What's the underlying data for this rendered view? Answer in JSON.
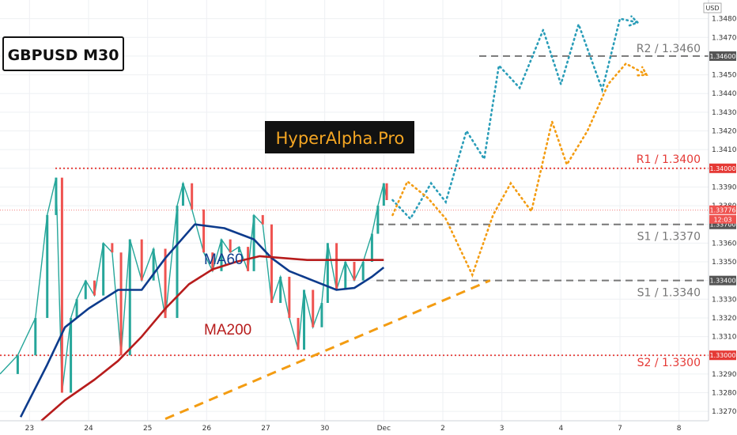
{
  "chart_data": {
    "type": "line",
    "title": "GBPUSD M30",
    "watermark": "HyperAlpha.Pro",
    "currency_label": "USD",
    "y_range": [
      1.3265,
      1.349
    ],
    "y_ticks": [
      "1.34800",
      "1.34700",
      "1.34600",
      "1.34500",
      "1.34400",
      "1.34300",
      "1.34200",
      "1.34100",
      "1.34000",
      "1.33900",
      "1.33800",
      "1.33700",
      "1.33600",
      "1.33500",
      "1.33400",
      "1.33300",
      "1.33200",
      "1.33100",
      "1.33000",
      "1.32900",
      "1.32800",
      "1.32700"
    ],
    "y_tick_values": [
      1.348,
      1.347,
      1.346,
      1.345,
      1.344,
      1.343,
      1.342,
      1.341,
      1.34,
      1.339,
      1.338,
      1.337,
      1.336,
      1.335,
      1.334,
      1.333,
      1.332,
      1.331,
      1.33,
      1.329,
      1.328,
      1.327
    ],
    "x_ticks": [
      "23",
      "24",
      "25",
      "26",
      "27",
      "30",
      "Dec",
      "2",
      "3",
      "4",
      "7",
      "8"
    ],
    "x_tick_positions": [
      0.5,
      1.5,
      2.5,
      3.5,
      4.5,
      5.5,
      6.5,
      7.5,
      8.5,
      9.5,
      10.5,
      11.5
    ],
    "x_range": [
      0,
      12
    ],
    "current_price": "1.33776",
    "countdown": "12:03",
    "grid": true,
    "levels": [
      {
        "label": "R2 / 1.3460",
        "value": 1.346,
        "axis_label": "1.34600",
        "color": "#777777",
        "style": "dashed"
      },
      {
        "label": "R1 / 1.3400",
        "value": 1.34,
        "axis_label": "1.34000",
        "color": "#e53935",
        "style": "dotted"
      },
      {
        "label": "S1 / 1.3370",
        "value": 1.337,
        "axis_label": "1.33700",
        "color": "#777777",
        "style": "dashed"
      },
      {
        "label": "S1 / 1.3340",
        "value": 1.334,
        "axis_label": "1.33400",
        "color": "#777777",
        "style": "dashed"
      },
      {
        "label": "S2 / 1.3300",
        "value": 1.33,
        "axis_label": "1.33000",
        "color": "#e53935",
        "style": "dotted"
      }
    ],
    "moving_averages": [
      {
        "name": "MA60",
        "color": "#0d3b8c",
        "x": [
          0.35,
          0.8,
          1.1,
          1.5,
          2.0,
          2.4,
          2.8,
          3.3,
          3.8,
          4.3,
          4.6,
          4.9,
          5.3,
          5.7,
          6.0,
          6.3,
          6.5
        ],
        "y": [
          1.3267,
          1.3295,
          1.3315,
          1.3325,
          1.3335,
          1.3335,
          1.3352,
          1.337,
          1.3368,
          1.3362,
          1.3352,
          1.3345,
          1.334,
          1.3335,
          1.3336,
          1.3342,
          1.3347
        ]
      },
      {
        "name": "MA200",
        "color": "#b71c1c",
        "x": [
          0.7,
          1.1,
          1.6,
          2.0,
          2.4,
          2.8,
          3.2,
          3.6,
          4.0,
          4.4,
          4.8,
          5.2,
          5.6,
          6.0,
          6.3,
          6.5
        ],
        "y": [
          1.3265,
          1.3276,
          1.3287,
          1.3297,
          1.331,
          1.3325,
          1.3338,
          1.3346,
          1.335,
          1.3353,
          1.3352,
          1.3351,
          1.3351,
          1.3351,
          1.3351,
          1.3351
        ]
      }
    ],
    "trendline": {
      "name": "",
      "color": "#f39c12",
      "x": [
        2.8,
        8.3
      ],
      "y": [
        1.3266,
        1.334
      ]
    },
    "price_series": {
      "name": "",
      "x": [
        0.0,
        0.3,
        0.6,
        0.8,
        0.95,
        1.05,
        1.2,
        1.3,
        1.45,
        1.6,
        1.75,
        1.9,
        2.05,
        2.2,
        2.4,
        2.6,
        2.8,
        3.0,
        3.1,
        3.25,
        3.45,
        3.6,
        3.75,
        3.9,
        4.05,
        4.2,
        4.3,
        4.45,
        4.6,
        4.75,
        4.9,
        5.05,
        5.15,
        5.3,
        5.45,
        5.55,
        5.7,
        5.85,
        6.0,
        6.15,
        6.3,
        6.4,
        6.5,
        6.55
      ],
      "y": [
        1.329,
        1.33,
        1.332,
        1.3375,
        1.3395,
        1.328,
        1.332,
        1.333,
        1.334,
        1.3332,
        1.336,
        1.3355,
        1.33,
        1.3362,
        1.334,
        1.3357,
        1.332,
        1.338,
        1.3392,
        1.3378,
        1.3355,
        1.3345,
        1.3362,
        1.3355,
        1.3358,
        1.3345,
        1.3375,
        1.337,
        1.3328,
        1.3342,
        1.332,
        1.3303,
        1.3335,
        1.3315,
        1.3328,
        1.336,
        1.3335,
        1.335,
        1.334,
        1.335,
        1.3365,
        1.338,
        1.3392,
        1.3383
      ]
    },
    "projections": [
      {
        "name": "",
        "color": "#2a9db8",
        "x": [
          6.65,
          6.95,
          7.3,
          7.55,
          7.9,
          8.2,
          8.45,
          8.8,
          9.2,
          9.5,
          9.8,
          10.2,
          10.5,
          10.8
        ],
        "y": [
          1.3383,
          1.3373,
          1.3392,
          1.3382,
          1.342,
          1.3405,
          1.3455,
          1.3443,
          1.3474,
          1.3445,
          1.3477,
          1.3442,
          1.348,
          1.3478
        ]
      },
      {
        "name": "",
        "color": "#f39c12",
        "x": [
          6.65,
          6.9,
          7.25,
          7.55,
          8.0,
          8.35,
          8.65,
          9.0,
          9.35,
          9.6,
          9.95,
          10.3,
          10.6,
          10.95
        ],
        "y": [
          1.3375,
          1.3393,
          1.3384,
          1.3373,
          1.3343,
          1.3375,
          1.3392,
          1.3377,
          1.3425,
          1.3402,
          1.342,
          1.3445,
          1.3456,
          1.345
        ]
      }
    ]
  }
}
